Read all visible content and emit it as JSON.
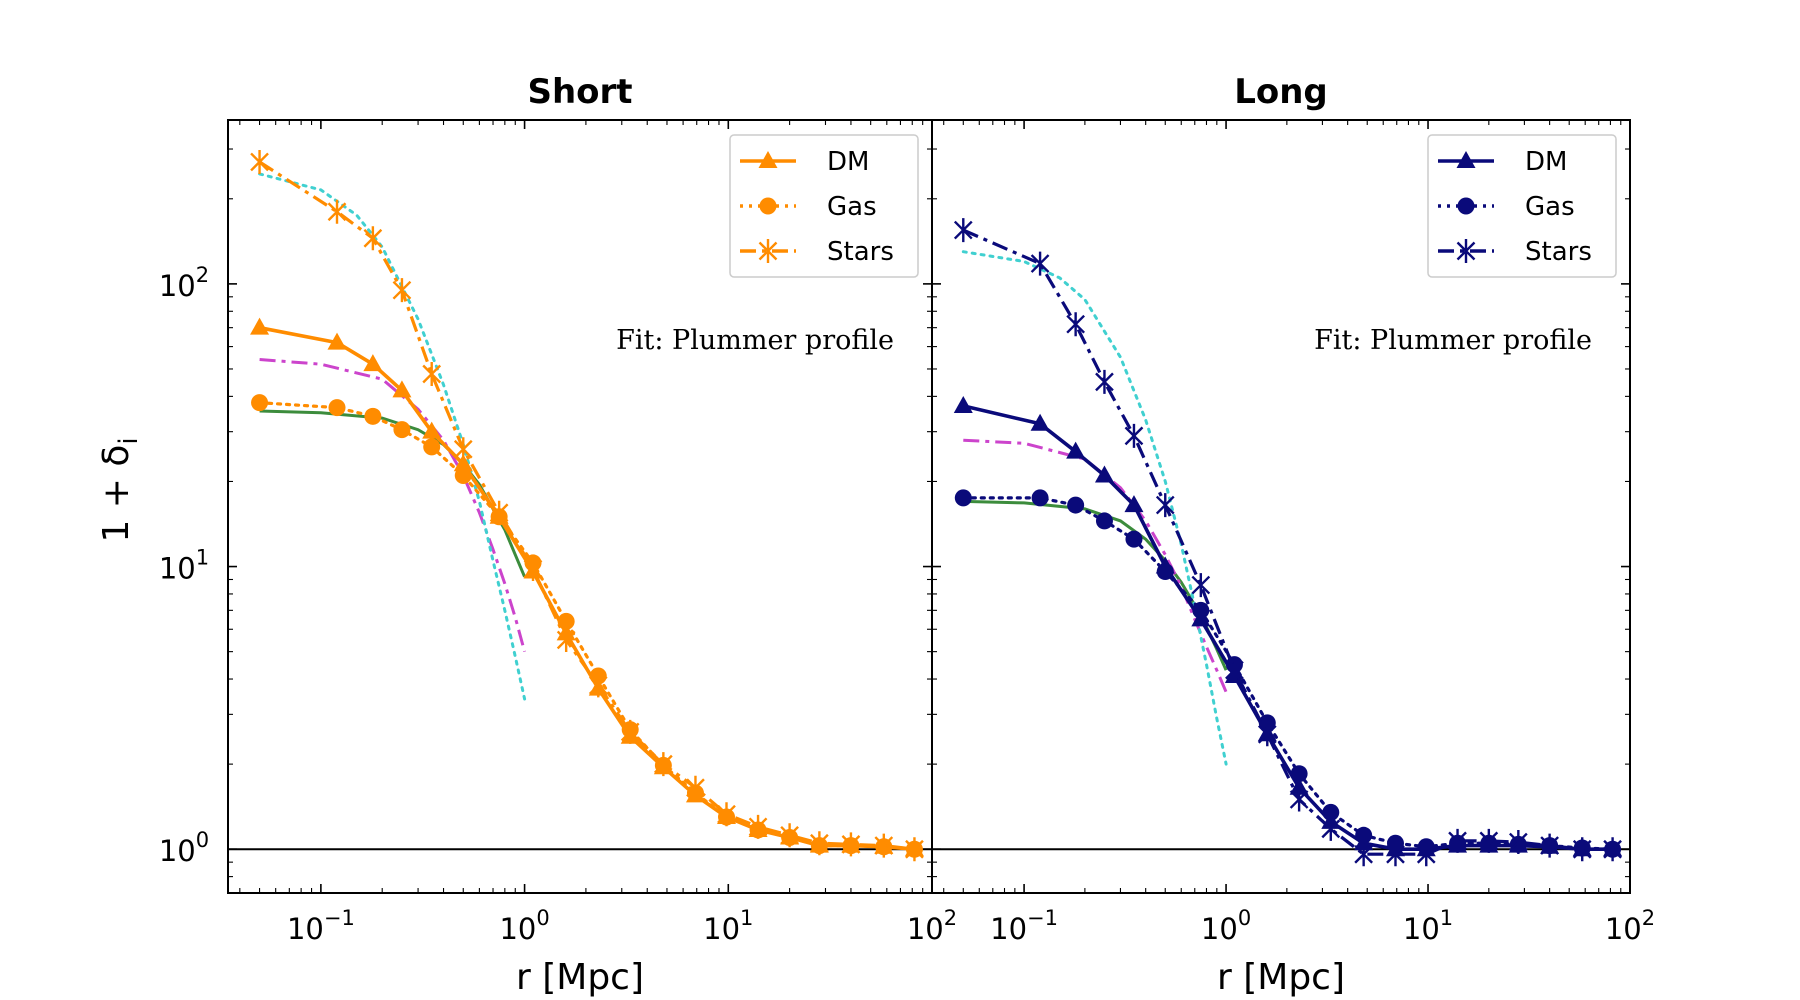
{
  "chart_data": {
    "type": "line",
    "ylabel": "1 + δ",
    "ylabel_sub": "i",
    "xscale": "log",
    "yscale": "log",
    "xlim": [
      0.035,
      100
    ],
    "ylim": [
      0.7,
      380
    ],
    "reference_line": 1,
    "panels": [
      {
        "title": "Short",
        "xlabel": "r [Mpc]",
        "annotation": "Fit: Plummer profile",
        "legend_position": "top-right",
        "color": "#ff8c00",
        "series": [
          {
            "name": "DM",
            "style": "solid",
            "marker": "triangle",
            "x": [
              0.05,
              0.12,
              0.18,
              0.25,
              0.35,
              0.5,
              0.75,
              1.1,
              1.6,
              2.3,
              3.3,
              4.8,
              6.9,
              9.8,
              14,
              20,
              28,
              40,
              58,
              82
            ],
            "y": [
              70,
              62,
              52,
              42,
              30,
              23,
              15,
              9.6,
              5.8,
              3.7,
              2.5,
              1.95,
              1.55,
              1.3,
              1.17,
              1.1,
              1.03,
              1.03,
              1.02,
              1.0
            ]
          },
          {
            "name": "Gas",
            "style": "dotted",
            "marker": "circle",
            "x": [
              0.05,
              0.12,
              0.18,
              0.25,
              0.35,
              0.5,
              0.75,
              1.1,
              1.6,
              2.3,
              3.3,
              4.8,
              6.9,
              9.8,
              14,
              20,
              28,
              40,
              58,
              82
            ],
            "y": [
              38,
              36.5,
              34,
              30.5,
              26.5,
              21,
              15,
              10.3,
              6.4,
              4.1,
              2.65,
              1.98,
              1.58,
              1.3,
              1.17,
              1.1,
              1.03,
              1.03,
              1.02,
              1.0
            ]
          },
          {
            "name": "Stars",
            "style": "dashdot",
            "marker": "star",
            "x": [
              0.05,
              0.12,
              0.18,
              0.25,
              0.35,
              0.5,
              0.75,
              1.1,
              1.6,
              2.3,
              3.3,
              4.8,
              6.9,
              9.8,
              14,
              20,
              28,
              40,
              58,
              82
            ],
            "y": [
              270,
              180,
              145,
              95,
              48,
              26,
              15.5,
              9.8,
              5.5,
              3.8,
              2.6,
              2.0,
              1.65,
              1.33,
              1.2,
              1.12,
              1.05,
              1.04,
              1.03,
              1.0
            ]
          }
        ],
        "fits": [
          {
            "name": "fit-gas",
            "style": "solid",
            "color": "#3c8c3c",
            "x": [
              0.05,
              0.1,
              0.2,
              0.3,
              0.4,
              0.5,
              0.6,
              0.7,
              0.8,
              0.9,
              1.0
            ],
            "y": [
              35.5,
              35,
              33.5,
              30.5,
              27,
              23,
              19.5,
              16,
              13.5,
              11,
              9.2
            ]
          },
          {
            "name": "fit-dm",
            "style": "dashdot",
            "color": "#cc44cc",
            "x": [
              0.05,
              0.1,
              0.2,
              0.3,
              0.4,
              0.5,
              0.6,
              0.7,
              0.8,
              0.9,
              1.0
            ],
            "y": [
              54,
              52,
              46,
              36,
              28,
              21,
              15.5,
              11.5,
              8.7,
              6.6,
              5.0
            ]
          },
          {
            "name": "fit-stars",
            "style": "dotted",
            "color": "#40d0d0",
            "x": [
              0.05,
              0.1,
              0.15,
              0.2,
              0.3,
              0.4,
              0.5,
              0.6,
              0.7,
              0.8,
              0.9,
              1.0
            ],
            "y": [
              245,
              215,
              175,
              135,
              75,
              44,
              27,
              17,
              10.5,
              7,
              4.8,
              3.4
            ]
          }
        ]
      },
      {
        "title": "Long",
        "xlabel": "r [Mpc]",
        "annotation": "Fit: Plummer profile",
        "legend_position": "top-right",
        "color": "#0a0a7a",
        "series": [
          {
            "name": "DM",
            "style": "solid",
            "marker": "triangle",
            "x": [
              0.05,
              0.12,
              0.18,
              0.25,
              0.35,
              0.5,
              0.75,
              1.1,
              1.6,
              2.3,
              3.3,
              4.8,
              6.9,
              9.8,
              14,
              20,
              28,
              40,
              58,
              82
            ],
            "y": [
              37,
              32,
              25.5,
              21,
              16.5,
              10,
              6.5,
              4.1,
              2.55,
              1.65,
              1.25,
              1.05,
              1.0,
              1.0,
              1.03,
              1.03,
              1.03,
              1.02,
              1.0,
              1.0
            ]
          },
          {
            "name": "Gas",
            "style": "dotted",
            "marker": "circle",
            "x": [
              0.05,
              0.12,
              0.18,
              0.25,
              0.35,
              0.5,
              0.75,
              1.1,
              1.6,
              2.3,
              3.3,
              4.8,
              6.9,
              9.8,
              14,
              20,
              28,
              40,
              58,
              82
            ],
            "y": [
              17.5,
              17.5,
              16.5,
              14.5,
              12.5,
              9.6,
              7.0,
              4.5,
              2.8,
              1.85,
              1.35,
              1.12,
              1.05,
              1.02,
              1.05,
              1.05,
              1.04,
              1.03,
              1.01,
              1.0
            ]
          },
          {
            "name": "Stars",
            "style": "dashdot",
            "marker": "star",
            "x": [
              0.05,
              0.12,
              0.18,
              0.25,
              0.35,
              0.5,
              0.75,
              1.1,
              1.6,
              2.3,
              3.3,
              4.8,
              6.9,
              9.8,
              14,
              20,
              28,
              40,
              58,
              82
            ],
            "y": [
              155,
              118,
              72,
              45,
              29,
              16.5,
              8.6,
              4.3,
              2.55,
              1.5,
              1.18,
              0.96,
              0.96,
              0.96,
              1.07,
              1.07,
              1.06,
              1.03,
              1.0,
              1.0
            ]
          }
        ],
        "fits": [
          {
            "name": "fit-gas",
            "style": "solid",
            "color": "#3c8c3c",
            "x": [
              0.05,
              0.1,
              0.2,
              0.3,
              0.4,
              0.5,
              0.6,
              0.7,
              0.8,
              0.9,
              1.0
            ],
            "y": [
              17,
              16.8,
              16,
              14.5,
              12.5,
              10.5,
              8.8,
              7.3,
              6.1,
              5.1,
              4.3
            ]
          },
          {
            "name": "fit-dm",
            "style": "dashdot",
            "color": "#cc44cc",
            "x": [
              0.05,
              0.1,
              0.2,
              0.3,
              0.4,
              0.5,
              0.6,
              0.7,
              0.8,
              0.9,
              1.0
            ],
            "y": [
              28,
              27.3,
              24,
              19,
              14.5,
              11,
              8.5,
              6.5,
              5.2,
              4.3,
              3.6
            ]
          },
          {
            "name": "fit-stars",
            "style": "dotted",
            "color": "#40d0d0",
            "x": [
              0.05,
              0.1,
              0.15,
              0.2,
              0.3,
              0.4,
              0.5,
              0.6,
              0.7,
              0.8,
              0.9,
              1.0
            ],
            "y": [
              130,
              120,
              105,
              88,
              55,
              33,
              20,
              12,
              7.2,
              4.5,
              2.9,
              2.0
            ]
          }
        ]
      }
    ],
    "xticks": [
      {
        "value": 0.1,
        "base": "10",
        "exp": "−1"
      },
      {
        "value": 1,
        "base": "10",
        "exp": "0"
      },
      {
        "value": 10,
        "base": "10",
        "exp": "1"
      },
      {
        "value": 100,
        "base": "10",
        "exp": "2"
      }
    ],
    "yticks": [
      {
        "value": 1,
        "base": "10",
        "exp": "0"
      },
      {
        "value": 10,
        "base": "10",
        "exp": "1"
      },
      {
        "value": 100,
        "base": "10",
        "exp": "2"
      }
    ]
  }
}
